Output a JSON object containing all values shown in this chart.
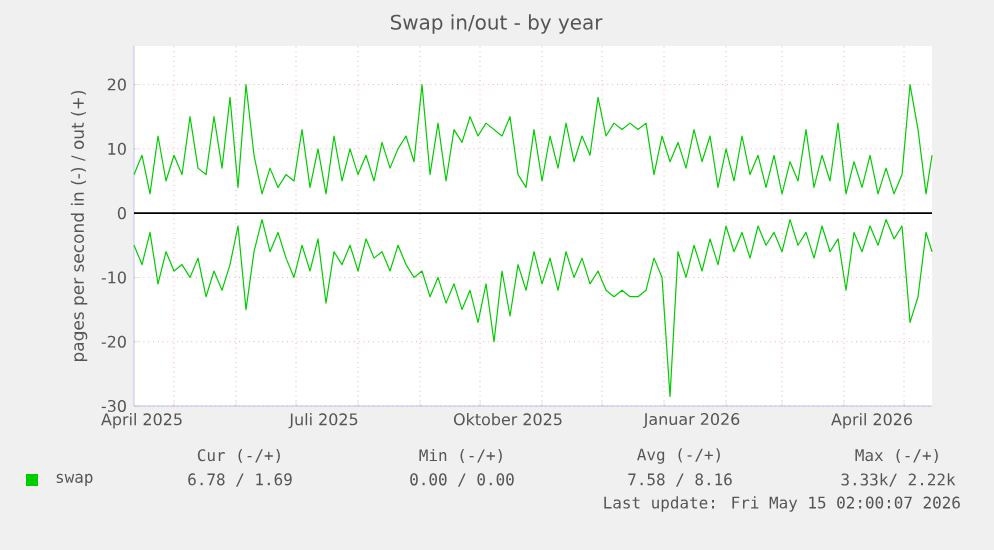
{
  "chart_data": {
    "type": "line",
    "title": "Swap in/out - by year",
    "ylabel": "pages per second in (-) / out (+)",
    "x": [
      "2025-04-11",
      "2025-04-15",
      "2025-04-19",
      "2025-04-23",
      "2025-04-27",
      "2025-05-01",
      "2025-05-05",
      "2025-05-09",
      "2025-05-13",
      "2025-05-17",
      "2025-05-21",
      "2025-05-25",
      "2025-05-29",
      "2025-06-02",
      "2025-06-06",
      "2025-06-10",
      "2025-06-14",
      "2025-06-18",
      "2025-06-22",
      "2025-06-26",
      "2025-06-30",
      "2025-07-04",
      "2025-07-08",
      "2025-07-12",
      "2025-07-16",
      "2025-07-20",
      "2025-07-24",
      "2025-07-28",
      "2025-08-01",
      "2025-08-05",
      "2025-08-09",
      "2025-08-13",
      "2025-08-17",
      "2025-08-21",
      "2025-08-25",
      "2025-08-29",
      "2025-09-02",
      "2025-09-06",
      "2025-09-10",
      "2025-09-14",
      "2025-09-18",
      "2025-09-22",
      "2025-09-26",
      "2025-09-30",
      "2025-10-04",
      "2025-10-08",
      "2025-10-12",
      "2025-10-16",
      "2025-10-20",
      "2025-10-24",
      "2025-10-28",
      "2025-11-01",
      "2025-11-05",
      "2025-11-09",
      "2025-11-13",
      "2025-11-17",
      "2025-11-21",
      "2025-11-25",
      "2025-11-29",
      "2025-12-03",
      "2025-12-07",
      "2025-12-11",
      "2025-12-15",
      "2025-12-19",
      "2025-12-23",
      "2025-12-27",
      "2025-12-31",
      "2026-01-04",
      "2026-01-08",
      "2026-01-12",
      "2026-01-16",
      "2026-01-20",
      "2026-01-24",
      "2026-01-28",
      "2026-02-01",
      "2026-02-05",
      "2026-02-09",
      "2026-02-13",
      "2026-02-17",
      "2026-02-21",
      "2026-02-25",
      "2026-03-01",
      "2026-03-05",
      "2026-03-09",
      "2026-03-13",
      "2026-03-17",
      "2026-03-21",
      "2026-03-25",
      "2026-03-29",
      "2026-04-02",
      "2026-04-06",
      "2026-04-10",
      "2026-04-14",
      "2026-04-18",
      "2026-04-22",
      "2026-04-26",
      "2026-04-30",
      "2026-05-04",
      "2026-05-08",
      "2026-05-12",
      "2026-05-15"
    ],
    "series": [
      {
        "name": "swap",
        "color": "#00cc00",
        "values": [
          6,
          9,
          3,
          12,
          5,
          9,
          6,
          15,
          7,
          6,
          15,
          7,
          18,
          4,
          20,
          9,
          3,
          7,
          4,
          6,
          5,
          13,
          4,
          10,
          3,
          12,
          5,
          10,
          6,
          9,
          5,
          11,
          7,
          10,
          12,
          8,
          20,
          6,
          14,
          5,
          13,
          11,
          15,
          12,
          14,
          13,
          12,
          15,
          6,
          4,
          13,
          5,
          12,
          7,
          14,
          8,
          12,
          9,
          18,
          12,
          14,
          13,
          14,
          13,
          14,
          6,
          12,
          8,
          11,
          7,
          13,
          8,
          12,
          4,
          10,
          5,
          12,
          6,
          9,
          4,
          9,
          3,
          8,
          5,
          13,
          4,
          9,
          5,
          14,
          3,
          8,
          4,
          9,
          3,
          7,
          3,
          6,
          20,
          13,
          3,
          9
        ]
      },
      {
        "color": "#00cc00",
        "values": [
          -5,
          -8,
          -3,
          -11,
          -6,
          -9,
          -8,
          -10,
          -7,
          -13,
          -9,
          -12,
          -8,
          -2,
          -15,
          -6,
          -1,
          -6,
          -3,
          -7,
          -10,
          -5,
          -9,
          -4,
          -14,
          -6,
          -8,
          -5,
          -9,
          -4,
          -7,
          -6,
          -9,
          -5,
          -8,
          -10,
          -9,
          -13,
          -10,
          -14,
          -11,
          -15,
          -12,
          -17,
          -11,
          -20,
          -9,
          -16,
          -8,
          -12,
          -6,
          -11,
          -7,
          -12,
          -6,
          -10,
          -7,
          -11,
          -9,
          -12,
          -13,
          -12,
          -13,
          -13,
          -12,
          -7,
          -10,
          -28.5,
          -6,
          -10,
          -5,
          -9,
          -4,
          -8,
          -2,
          -6,
          -3,
          -7,
          -2,
          -5,
          -3,
          -6,
          -1,
          -5,
          -3,
          -7,
          -2,
          -6,
          -4,
          -12,
          -3,
          -6,
          -2,
          -5,
          -1,
          -4,
          -2,
          -17,
          -13,
          -3,
          -6
        ]
      }
    ],
    "xlim": [
      "2025-04-11",
      "2026-05-15"
    ],
    "xticks": [
      {
        "value": "2025-04-15",
        "label": "April 2025"
      },
      {
        "value": "2025-05-01",
        "label": null
      },
      {
        "value": "2025-06-01",
        "label": null
      },
      {
        "value": "2025-07-01",
        "label": null
      },
      {
        "value": "2025-07-15",
        "label": "Juli 2025"
      },
      {
        "value": "2025-08-01",
        "label": null
      },
      {
        "value": "2025-09-01",
        "label": null
      },
      {
        "value": "2025-10-01",
        "label": null
      },
      {
        "value": "2025-10-15",
        "label": "Oktober 2025"
      },
      {
        "value": "2025-11-01",
        "label": null
      },
      {
        "value": "2025-12-01",
        "label": null
      },
      {
        "value": "2026-01-01",
        "label": null
      },
      {
        "value": "2026-01-15",
        "label": "Januar 2026"
      },
      {
        "value": "2026-02-01",
        "label": null
      },
      {
        "value": "2026-03-01",
        "label": null
      },
      {
        "value": "2026-04-01",
        "label": null
      },
      {
        "value": "2026-04-15",
        "label": "April 2026"
      },
      {
        "value": "2026-05-01",
        "label": null
      }
    ],
    "ylim": [
      -30,
      26
    ],
    "yticks": [
      -30,
      -20,
      -10,
      0,
      10,
      20
    ],
    "ref_lines": [
      {
        "axis": "y",
        "value": 0,
        "color": "#000000"
      }
    ],
    "grid": true,
    "legend": "bottom",
    "line_style": "solid",
    "marker": "none",
    "annotations": [
      "Cur (-/+)",
      "Min (-/+)",
      "Avg (-/+)",
      "Max (-/+)",
      "6.78 / 1.69",
      "0.00 / 0.00",
      "7.58 / 8.16",
      "3.33k/ 2.22k",
      "Last update: Fri May 15 02:00:07 2026"
    ]
  }
}
